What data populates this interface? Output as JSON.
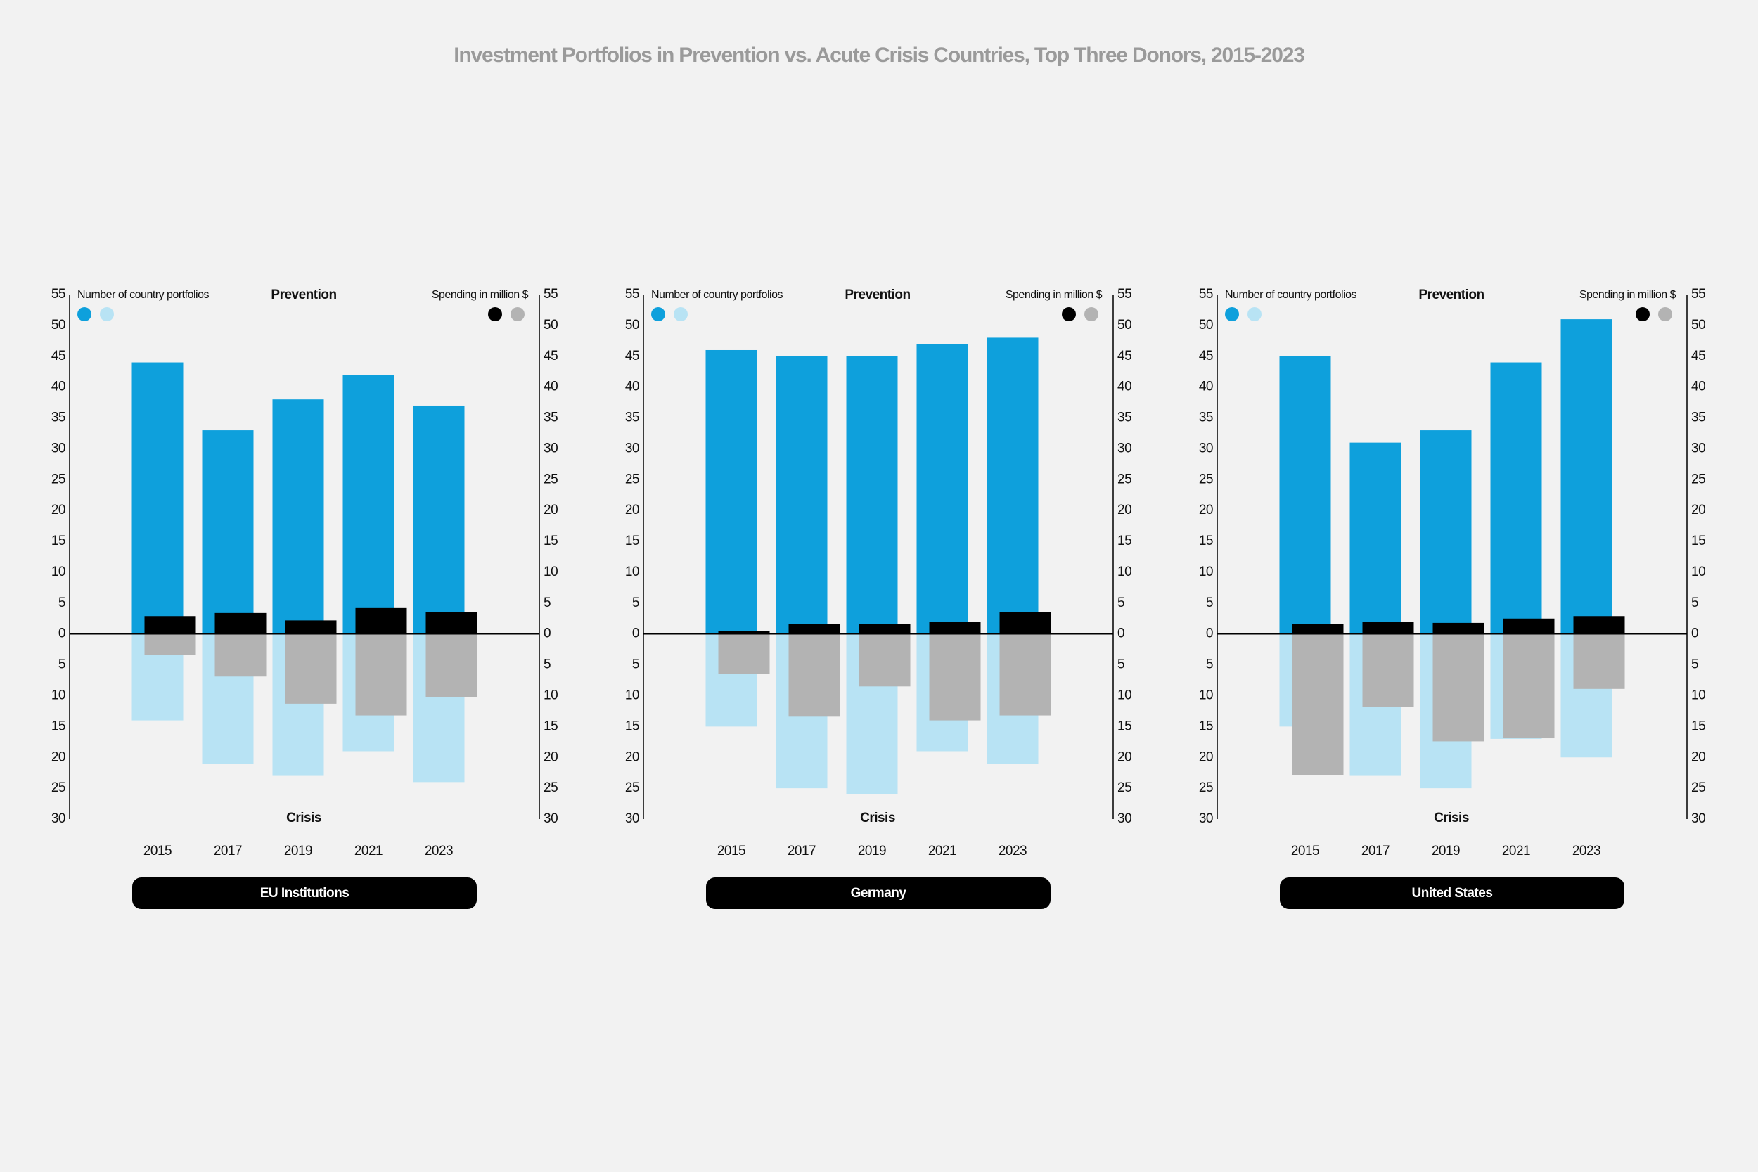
{
  "title": "Investment Portfolios in Prevention vs. Acute Crisis Countries, Top Three Donors, 2015-2023",
  "chart_data": [
    {
      "type": "bar",
      "title": "EU Institutions",
      "top_label": "Prevention",
      "bottom_label": "Crisis",
      "ylabel": "Number of country portfolios",
      "y2label": "Spending in million $",
      "categories": [
        "2015",
        "2017",
        "2019",
        "2021",
        "2023"
      ],
      "series": [
        {
          "color": "#0ea0dc",
          "values": [
            44,
            33,
            38,
            42,
            37
          ]
        },
        {
          "color": "#b8e3f4",
          "values": [
            -14,
            -21,
            -23,
            -19,
            -24
          ]
        },
        {
          "color": "#000000",
          "axis": "y2",
          "values": [
            2.9,
            3.4,
            2.2,
            4.2,
            3.6
          ]
        },
        {
          "color": "#b3b3b3",
          "axis": "y2",
          "values": [
            -3.4,
            -6.9,
            -11.3,
            -13.2,
            -10.2
          ]
        }
      ],
      "ylim": [
        -30,
        55
      ],
      "yticks": [
        {
          "value": -30,
          "label": "30"
        },
        {
          "value": -25,
          "label": "25"
        },
        {
          "value": -20,
          "label": "20"
        },
        {
          "value": -15,
          "label": "15"
        },
        {
          "value": -10,
          "label": "10"
        },
        {
          "value": -5,
          "label": "5"
        },
        0,
        5,
        10,
        15,
        20,
        25,
        30,
        35,
        40,
        45,
        50,
        55
      ],
      "y2lim": [
        -30,
        55
      ],
      "y2ticks": [
        {
          "value": -30,
          "label": "30"
        },
        {
          "value": -25,
          "label": "25"
        },
        {
          "value": -20,
          "label": "20"
        },
        {
          "value": -15,
          "label": "15"
        },
        {
          "value": -10,
          "label": "10"
        },
        {
          "value": -5,
          "label": "5"
        },
        0,
        5,
        10,
        15,
        20,
        25,
        30,
        35,
        40,
        45,
        50,
        55
      ]
    },
    {
      "type": "bar",
      "title": "Germany",
      "top_label": "Prevention",
      "bottom_label": "Crisis",
      "ylabel": "Number of country portfolios",
      "y2label": "Spending in million $",
      "categories": [
        "2015",
        "2017",
        "2019",
        "2021",
        "2023"
      ],
      "series": [
        {
          "color": "#0ea0dc",
          "values": [
            46,
            45,
            45,
            47,
            48
          ]
        },
        {
          "color": "#b8e3f4",
          "values": [
            -15,
            -25,
            -26,
            -19,
            -21
          ]
        },
        {
          "color": "#000000",
          "axis": "y2",
          "values": [
            0.5,
            1.6,
            1.6,
            2,
            3.6
          ]
        },
        {
          "color": "#b3b3b3",
          "axis": "y2",
          "values": [
            -6.5,
            -13.4,
            -8.5,
            -14,
            -13.2
          ]
        }
      ],
      "ylim": [
        -30,
        55
      ],
      "yticks": [
        {
          "value": -30,
          "label": "30"
        },
        {
          "value": -25,
          "label": "25"
        },
        {
          "value": -20,
          "label": "20"
        },
        {
          "value": -15,
          "label": "15"
        },
        {
          "value": -10,
          "label": "10"
        },
        {
          "value": -5,
          "label": "5"
        },
        0,
        5,
        10,
        15,
        20,
        25,
        30,
        35,
        40,
        45,
        50,
        55
      ],
      "y2lim": [
        -30,
        55
      ],
      "y2ticks": [
        {
          "value": -30,
          "label": "30"
        },
        {
          "value": -25,
          "label": "25"
        },
        {
          "value": -20,
          "label": "20"
        },
        {
          "value": -15,
          "label": "15"
        },
        {
          "value": -10,
          "label": "10"
        },
        {
          "value": -5,
          "label": "5"
        },
        0,
        5,
        10,
        15,
        20,
        25,
        30,
        35,
        40,
        45,
        50,
        55
      ]
    },
    {
      "type": "bar",
      "title": "United States",
      "top_label": "Prevention",
      "bottom_label": "Crisis",
      "ylabel": "Number of country portfolios",
      "y2label": "Spending in million $",
      "categories": [
        "2015",
        "2017",
        "2019",
        "2021",
        "2023"
      ],
      "series": [
        {
          "color": "#0ea0dc",
          "values": [
            45,
            31,
            33,
            44,
            51
          ]
        },
        {
          "color": "#b8e3f4",
          "values": [
            -15,
            -23,
            -25,
            -17,
            -20
          ]
        },
        {
          "color": "#000000",
          "axis": "y2",
          "values": [
            1.6,
            2,
            1.8,
            2.5,
            2.9
          ]
        },
        {
          "color": "#b3b3b3",
          "axis": "y2",
          "values": [
            -22.9,
            -11.8,
            -17.4,
            -16.9,
            -8.9
          ]
        }
      ],
      "ylim": [
        -30,
        55
      ],
      "yticks": [
        {
          "value": -30,
          "label": "30"
        },
        {
          "value": -25,
          "label": "25"
        },
        {
          "value": -20,
          "label": "20"
        },
        {
          "value": -15,
          "label": "15"
        },
        {
          "value": -10,
          "label": "10"
        },
        {
          "value": -5,
          "label": "5"
        },
        0,
        5,
        10,
        15,
        20,
        25,
        30,
        35,
        40,
        45,
        50,
        55
      ],
      "y2lim": [
        -30,
        55
      ],
      "y2ticks": [
        {
          "value": -30,
          "label": "30"
        },
        {
          "value": -25,
          "label": "25"
        },
        {
          "value": -20,
          "label": "20"
        },
        {
          "value": -15,
          "label": "15"
        },
        {
          "value": -10,
          "label": "10"
        },
        {
          "value": -5,
          "label": "5"
        },
        0,
        5,
        10,
        15,
        20,
        25,
        30,
        35,
        40,
        45,
        50,
        55
      ]
    }
  ]
}
